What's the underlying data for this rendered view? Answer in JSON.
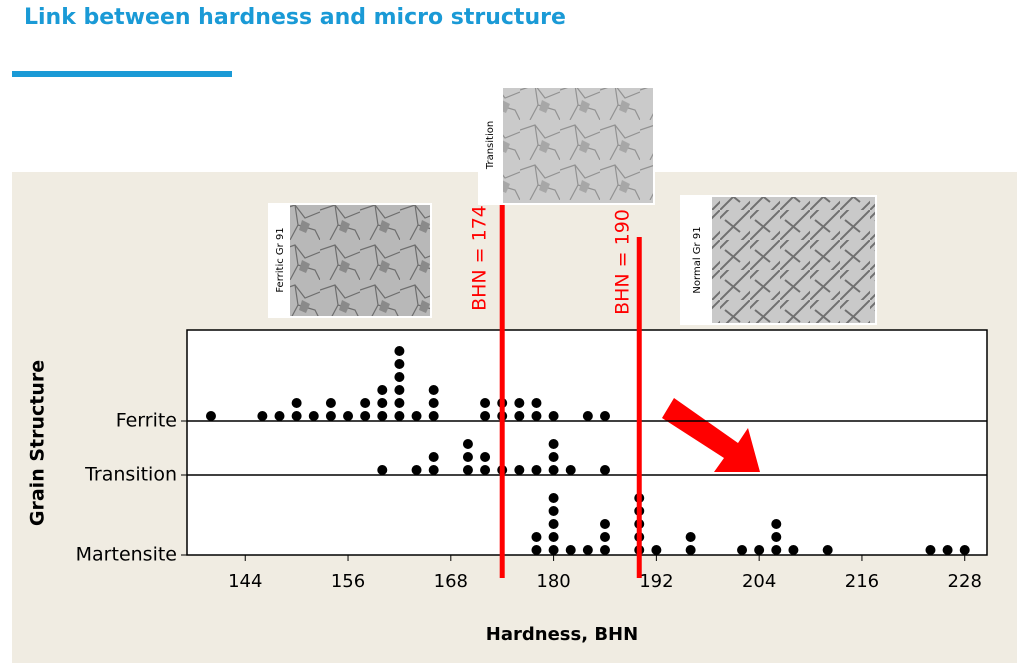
{
  "title": "Link between hardness and micro structure",
  "photos": [
    "Ferritic Gr 91",
    "Transition",
    "Normal Gr 91"
  ],
  "chart_data": {
    "type": "dotplot",
    "xlabel": "Hardness, BHN",
    "ylabel": "Grain Structure",
    "categories": [
      "Ferrite",
      "Transition",
      "Martensite"
    ],
    "values": [
      [
        140,
        146,
        148,
        150,
        150,
        152,
        154,
        154,
        156,
        158,
        158,
        160,
        160,
        160,
        162,
        162,
        162,
        162,
        162,
        162,
        164,
        166,
        166,
        166,
        172,
        172,
        174,
        174,
        176,
        176,
        178,
        178,
        180,
        184,
        186
      ],
      [
        160,
        164,
        166,
        166,
        170,
        170,
        170,
        172,
        172,
        174,
        176,
        178,
        180,
        180,
        180,
        182,
        186
      ],
      [
        178,
        178,
        180,
        180,
        180,
        180,
        180,
        182,
        184,
        186,
        186,
        186,
        190,
        190,
        190,
        190,
        190,
        192,
        196,
        196,
        202,
        204,
        206,
        206,
        206,
        208,
        212,
        224,
        226,
        228
      ]
    ],
    "color": "#000000",
    "xlim": [
      137.2,
      230.6
    ],
    "xticks": [
      144,
      156,
      168,
      180,
      192,
      204,
      216,
      228
    ],
    "reference_lines": [
      {
        "value": 174,
        "label": "BHN = 174"
      },
      {
        "value": 190,
        "label": "BHN = 190"
      }
    ],
    "reference_color": "#ff0000"
  }
}
